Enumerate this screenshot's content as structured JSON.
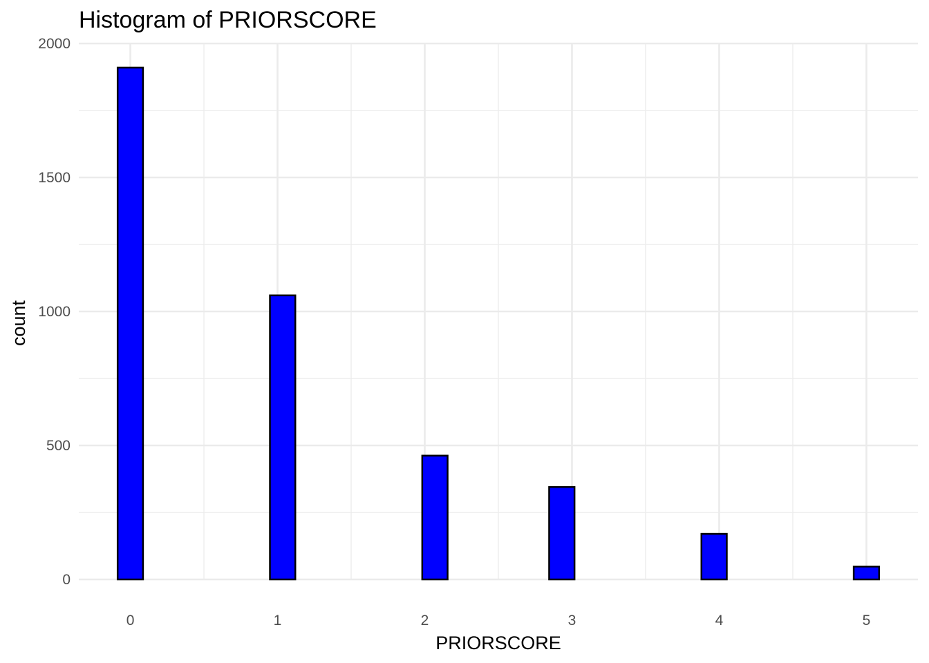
{
  "chart_data": {
    "type": "bar",
    "title": "Histogram of PRIORSCORE",
    "xlabel": "PRIORSCORE",
    "ylabel": "count",
    "x_ticks": [
      "0",
      "1",
      "2",
      "3",
      "4",
      "5"
    ],
    "y_ticks": [
      "0",
      "500",
      "1000",
      "1500",
      "2000"
    ],
    "xlim": [
      -0.35,
      5.35
    ],
    "ylim": [
      0,
      2000
    ],
    "bin_width": 0.1724,
    "bins": [
      {
        "x": 0.0,
        "count": 1910
      },
      {
        "x": 0.1724,
        "count": 0
      },
      {
        "x": 0.3448,
        "count": 0
      },
      {
        "x": 0.5172,
        "count": 0
      },
      {
        "x": 0.6897,
        "count": 0
      },
      {
        "x": 0.8621,
        "count": 0
      },
      {
        "x": 1.0345,
        "count": 1060
      },
      {
        "x": 1.2069,
        "count": 0
      },
      {
        "x": 1.3793,
        "count": 0
      },
      {
        "x": 1.5517,
        "count": 0
      },
      {
        "x": 1.7241,
        "count": 0
      },
      {
        "x": 1.8966,
        "count": 0
      },
      {
        "x": 2.069,
        "count": 462
      },
      {
        "x": 2.2414,
        "count": 0
      },
      {
        "x": 2.4138,
        "count": 0
      },
      {
        "x": 2.5862,
        "count": 0
      },
      {
        "x": 2.7586,
        "count": 0
      },
      {
        "x": 2.931,
        "count": 345
      },
      {
        "x": 3.1034,
        "count": 0
      },
      {
        "x": 3.2759,
        "count": 0
      },
      {
        "x": 3.4483,
        "count": 0
      },
      {
        "x": 3.6207,
        "count": 0
      },
      {
        "x": 3.7931,
        "count": 0
      },
      {
        "x": 3.9655,
        "count": 170
      },
      {
        "x": 4.1379,
        "count": 0
      },
      {
        "x": 4.3103,
        "count": 0
      },
      {
        "x": 4.4828,
        "count": 0
      },
      {
        "x": 4.6552,
        "count": 0
      },
      {
        "x": 4.8276,
        "count": 0
      },
      {
        "x": 5.0,
        "count": 48
      }
    ],
    "fill_color": "#0000ff",
    "outline_color": "#000000",
    "grid": true,
    "theme": "minimal",
    "legend": "none"
  }
}
